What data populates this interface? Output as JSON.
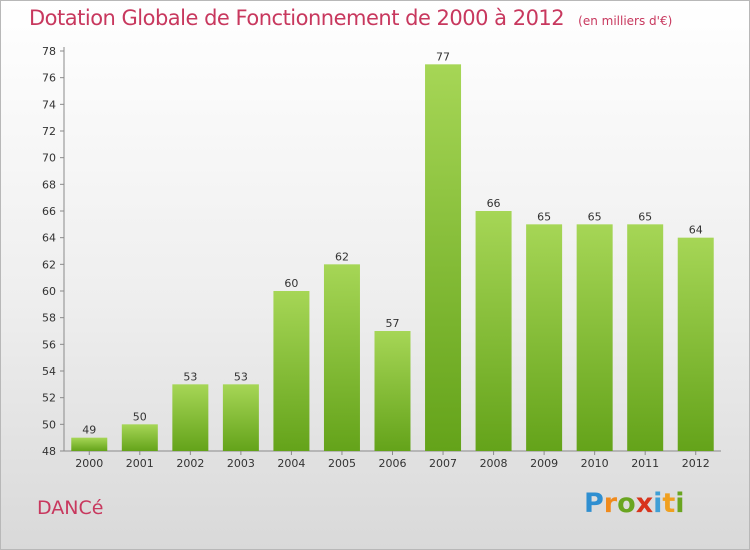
{
  "title": "Dotation Globale de Fonctionnement de 2000 à 2012",
  "subtitle": "(en milliers d'€)",
  "commune": "DANCé",
  "logo": {
    "letters": [
      "P",
      "r",
      "o",
      "x",
      "i",
      "t",
      "i"
    ],
    "colors": [
      "#2f8fd1",
      "#f08a1c",
      "#6aa520",
      "#d8341c",
      "#3f9fd6",
      "#f0a020",
      "#6aa520"
    ]
  },
  "colors": {
    "bar_top": "#a6d656",
    "bar_bottom": "#64a31a",
    "title": "#c8385e"
  },
  "chart_data": {
    "type": "bar",
    "categories": [
      "2000",
      "2001",
      "2002",
      "2003",
      "2004",
      "2005",
      "2006",
      "2007",
      "2008",
      "2009",
      "2010",
      "2011",
      "2012"
    ],
    "values": [
      49,
      50,
      53,
      53,
      60,
      62,
      57,
      77,
      66,
      65,
      65,
      65,
      64
    ],
    "ylim": [
      48,
      78
    ],
    "yticks": [
      48,
      50,
      52,
      54,
      56,
      58,
      60,
      62,
      64,
      66,
      68,
      70,
      72,
      74,
      76,
      78
    ],
    "grid": false
  }
}
